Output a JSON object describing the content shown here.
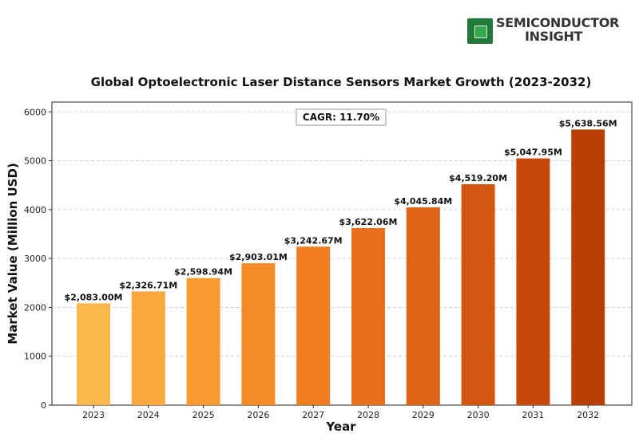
{
  "logo": {
    "line1": "SEMICONDUCTOR",
    "line2": "INSIGHT"
  },
  "chart_data": {
    "type": "bar",
    "title": "Global Optoelectronic Laser Distance Sensors Market Growth (2023-2032)",
    "xlabel": "Year",
    "ylabel": "Market Value (Million USD)",
    "categories": [
      "2023",
      "2024",
      "2025",
      "2026",
      "2027",
      "2028",
      "2029",
      "2030",
      "2031",
      "2032"
    ],
    "values": [
      2083.0,
      2326.71,
      2598.94,
      2903.01,
      3242.67,
      3622.06,
      4045.84,
      4519.2,
      5047.95,
      5638.56
    ],
    "data_labels": [
      "$2,083.00M",
      "$2,326.71M",
      "$2,598.94M",
      "$2,903.01M",
      "$3,242.67M",
      "$3,622.06M",
      "$4,045.84M",
      "$4,519.20M",
      "$5,047.95M",
      "$5,638.56M"
    ],
    "yticks": [
      0,
      1000,
      2000,
      3000,
      4000,
      5000,
      6000
    ],
    "ylim": [
      0,
      6200
    ],
    "grid": "horizontal dashed",
    "annotation": "CAGR: 11.70%",
    "colors": [
      "#fdb84d",
      "#fca83e",
      "#f99a31",
      "#f58b27",
      "#f07d1f",
      "#e9701a",
      "#e06215",
      "#d45510",
      "#c8480b",
      "#b84006"
    ]
  }
}
